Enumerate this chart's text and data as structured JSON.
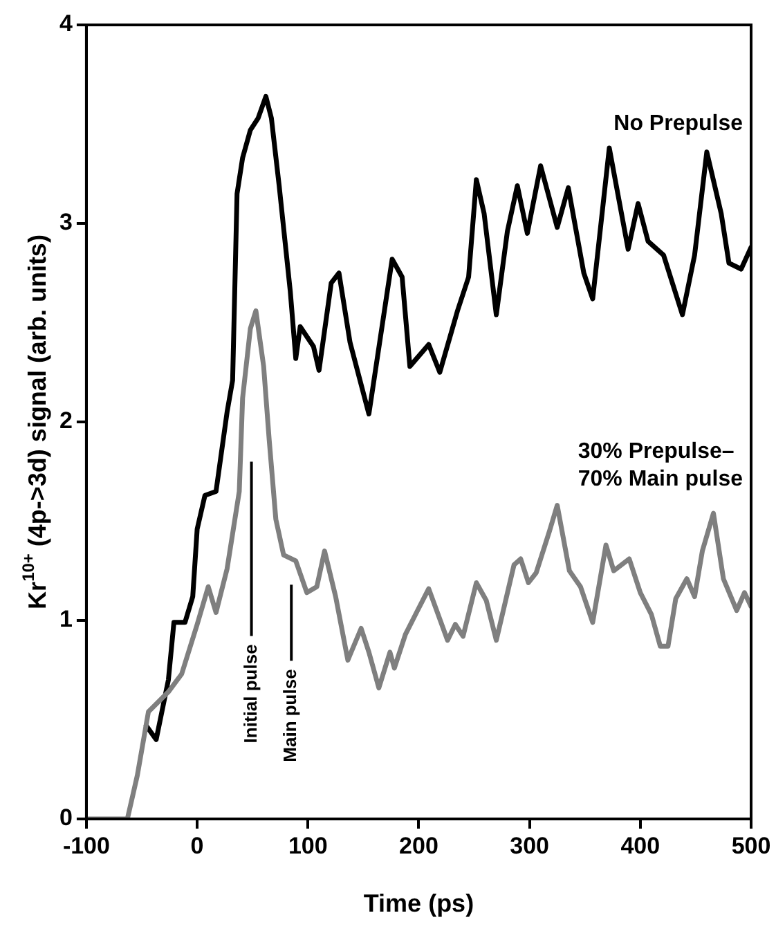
{
  "chart_data": {
    "type": "line",
    "xlabel": "Time (ps)",
    "ylabel": "Kr$^{10+}$ (4p->3d) signal (arb. units)",
    "xlim": [
      -100,
      500
    ],
    "xticks": [
      -100,
      0,
      100,
      200,
      300,
      400,
      500
    ],
    "ylim": [
      0,
      4
    ],
    "yticks": [
      0,
      1,
      2,
      3,
      4
    ],
    "grid": false,
    "legend": false,
    "marker": "none",
    "line_style": "solid",
    "series": [
      {
        "name": "No Prepulse",
        "color": "#000000",
        "x": [
          -46,
          -37,
          -26,
          -21,
          -11,
          -4,
          0,
          7,
          17,
          27,
          32,
          36,
          41,
          48,
          55,
          62,
          67,
          74,
          84,
          89,
          93,
          105,
          110,
          121,
          128,
          138,
          155,
          176,
          185,
          192,
          209,
          219,
          235,
          245,
          252,
          259,
          270,
          280,
          289,
          298,
          310,
          325,
          335,
          349,
          357,
          372,
          383,
          389,
          398,
          407,
          421,
          438,
          449,
          460,
          473,
          480,
          491,
          500
        ],
        "values": [
          0.47,
          0.4,
          0.7,
          0.99,
          0.99,
          1.12,
          1.46,
          1.63,
          1.65,
          2.05,
          2.21,
          3.15,
          3.33,
          3.47,
          3.53,
          3.64,
          3.53,
          3.19,
          2.66,
          2.32,
          2.48,
          2.38,
          2.26,
          2.7,
          2.75,
          2.4,
          2.04,
          2.82,
          2.73,
          2.28,
          2.39,
          2.25,
          2.56,
          2.73,
          3.22,
          3.05,
          2.54,
          2.96,
          3.19,
          2.95,
          3.29,
          2.98,
          3.18,
          2.75,
          2.62,
          3.38,
          3.05,
          2.87,
          3.1,
          2.91,
          2.84,
          2.54,
          2.84,
          3.36,
          3.05,
          2.8,
          2.77,
          2.88
        ]
      },
      {
        "name": "30% Prepulse–70% Main pulse",
        "color": "#7f7f7f",
        "x": [
          -100,
          -63,
          -54,
          -44,
          -26,
          -14,
          0,
          10,
          17,
          27,
          38,
          41,
          48,
          53,
          60,
          65,
          71,
          78,
          89,
          99,
          108,
          115,
          125,
          136,
          148,
          155,
          164,
          174,
          178,
          188,
          198,
          209,
          226,
          233,
          240,
          252,
          261,
          270,
          278,
          286,
          292,
          299,
          306,
          318,
          325,
          336,
          346,
          357,
          369,
          376,
          390,
          400,
          410,
          418,
          425,
          432,
          442,
          449,
          456,
          466,
          475,
          487,
          494,
          500
        ],
        "values": [
          0,
          0,
          0.22,
          0.54,
          0.64,
          0.73,
          0.98,
          1.17,
          1.04,
          1.26,
          1.65,
          2.12,
          2.47,
          2.56,
          2.28,
          1.91,
          1.51,
          1.33,
          1.3,
          1.14,
          1.17,
          1.35,
          1.12,
          0.8,
          0.96,
          0.84,
          0.66,
          0.84,
          0.76,
          0.93,
          1.04,
          1.16,
          0.9,
          0.98,
          0.92,
          1.19,
          1.1,
          0.9,
          1.09,
          1.28,
          1.31,
          1.19,
          1.24,
          1.45,
          1.58,
          1.25,
          1.17,
          0.99,
          1.38,
          1.25,
          1.31,
          1.14,
          1.03,
          0.87,
          0.87,
          1.11,
          1.21,
          1.12,
          1.35,
          1.54,
          1.21,
          1.05,
          1.14,
          1.07
        ]
      }
    ],
    "ref_lines": [
      {
        "axis": "x",
        "value": 49,
        "label": "Initial pulse"
      },
      {
        "axis": "x",
        "value": 85,
        "label": "Main pulse"
      }
    ]
  }
}
